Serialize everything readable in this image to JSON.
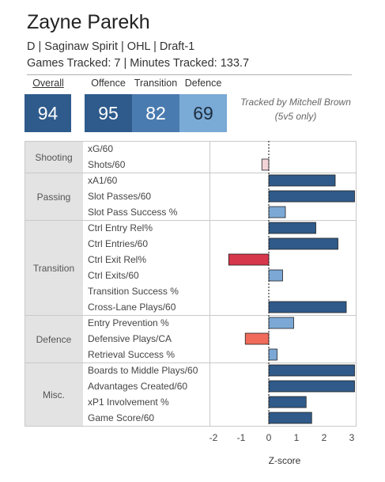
{
  "player": {
    "name": "Zayne Parekh",
    "line1": "D | Saginaw Spirit | OHL | Draft-1",
    "line2": "Games Tracked: 7 | Minutes Tracked: 133.7"
  },
  "ratings": {
    "overall": {
      "label": "Overall",
      "value": "94",
      "color": "#2e5b8c"
    },
    "offence": {
      "label": "Offence",
      "value": "95",
      "color": "#2e5b8c"
    },
    "transition": {
      "label": "Transition",
      "value": "82",
      "color": "#4a7bb0"
    },
    "defence": {
      "label": "Defence",
      "value": "69",
      "color": "#7aaad6"
    }
  },
  "tracked_note": {
    "line1": "Tracked by Mitchell Brown",
    "line2": "(5v5 only)"
  },
  "colors": {
    "dark_blue": "#2f5a8a",
    "light_blue": "#7ba8d5",
    "red": "#d7374a",
    "salmon": "#f06b5a",
    "pink": "#f2d4d8"
  },
  "chart_data": {
    "type": "bar",
    "orientation": "horizontal",
    "xlabel": "Z-score",
    "xlim": [
      -2,
      3
    ],
    "xticks": [
      -2,
      -1,
      0,
      1,
      2,
      3
    ],
    "groups": [
      {
        "name": "Shooting",
        "metrics": [
          {
            "label": "xG/60",
            "value": 0.0,
            "color": "#f2d4d8"
          },
          {
            "label": "Shots/60",
            "value": -0.25,
            "color": "#f2d4d8"
          }
        ]
      },
      {
        "name": "Passing",
        "metrics": [
          {
            "label": "xA1/60",
            "value": 2.4,
            "color": "#2f5a8a"
          },
          {
            "label": "Slot Passes/60",
            "value": 3.1,
            "color": "#2f5a8a"
          },
          {
            "label": "Slot Pass Success %",
            "value": 0.6,
            "color": "#7ba8d5"
          }
        ]
      },
      {
        "name": "Transition",
        "metrics": [
          {
            "label": "Ctrl Entry Rel%",
            "value": 1.7,
            "color": "#2f5a8a"
          },
          {
            "label": "Ctrl Entries/60",
            "value": 2.5,
            "color": "#2f5a8a"
          },
          {
            "label": "Ctrl Exit Rel%",
            "value": -1.45,
            "color": "#d7374a"
          },
          {
            "label": "Ctrl Exits/60",
            "value": 0.5,
            "color": "#7ba8d5"
          },
          {
            "label": "Transition Success %",
            "value": 0.0,
            "color": "#2f5a8a"
          },
          {
            "label": "Cross-Lane Plays/60",
            "value": 2.8,
            "color": "#2f5a8a"
          }
        ]
      },
      {
        "name": "Defence",
        "metrics": [
          {
            "label": "Entry Prevention %",
            "value": 0.9,
            "color": "#7ba8d5"
          },
          {
            "label": "Defensive Plays/CA",
            "value": -0.85,
            "color": "#f06b5a"
          },
          {
            "label": "Retrieval Success %",
            "value": 0.3,
            "color": "#7ba8d5"
          }
        ]
      },
      {
        "name": "Misc.",
        "metrics": [
          {
            "label": "Boards to Middle Plays/60",
            "value": 3.1,
            "color": "#2f5a8a"
          },
          {
            "label": "Advantages Created/60",
            "value": 3.1,
            "color": "#2f5a8a"
          },
          {
            "label": "xP1 Involvement %",
            "value": 1.35,
            "color": "#2f5a8a"
          },
          {
            "label": "Game Score/60",
            "value": 1.55,
            "color": "#2f5a8a"
          }
        ]
      }
    ]
  }
}
